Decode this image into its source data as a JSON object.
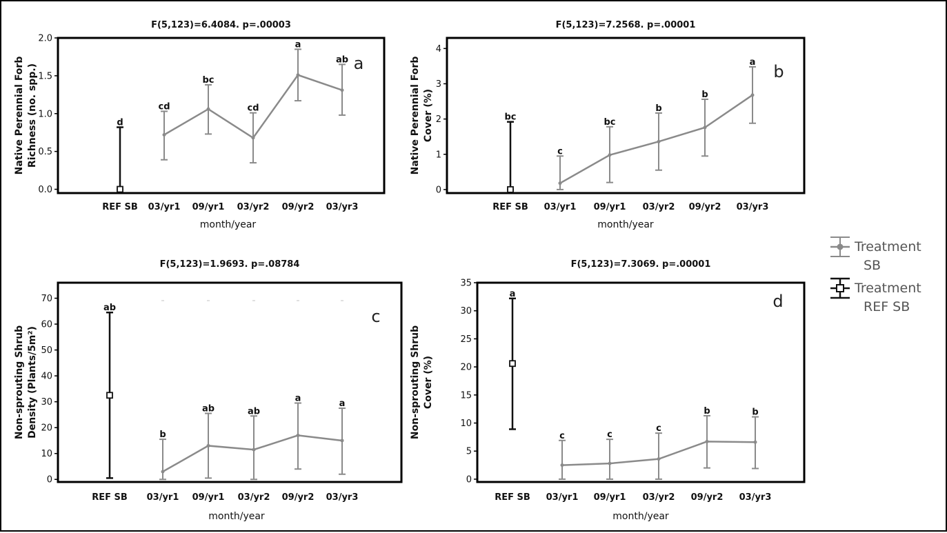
{
  "legend": {
    "items": [
      {
        "line1": "Treatment",
        "line2": "SB",
        "color": "#8a8a8a",
        "marker": "circle"
      },
      {
        "line1": "Treatment",
        "line2": "REF SB",
        "color": "#111111",
        "marker": "square"
      }
    ]
  },
  "chart_data": [
    {
      "type": "line",
      "title": "F(5,123)=6.4084. p=.00003",
      "panel_label": "a",
      "ylabel_lines": [
        "Native Perennial Forb",
        "Richness (no. spp.)"
      ],
      "xlabel": "month/year",
      "categories": [
        "REF SB",
        "03/yr1",
        "09/yr1",
        "03/yr2",
        "09/yr2",
        "03/yr3"
      ],
      "ylim": [
        -0.05,
        2.0
      ],
      "yticks": [
        0.0,
        0.5,
        1.0,
        1.5,
        2.0
      ],
      "ytick_labels": [
        "0.0",
        "0.5",
        "1.0",
        "1.5",
        "2.0"
      ],
      "series": [
        {
          "name": "Treatment SB",
          "color": "#8a8a8a",
          "marker": "circle",
          "x": [
            "03/yr1",
            "09/yr1",
            "03/yr2",
            "09/yr2",
            "03/yr3"
          ],
          "values": [
            0.72,
            1.06,
            0.68,
            1.51,
            1.31
          ],
          "lower": [
            0.39,
            0.73,
            0.35,
            1.17,
            0.98
          ],
          "upper": [
            1.03,
            1.38,
            1.01,
            1.85,
            1.65
          ]
        },
        {
          "name": "Treatment REF SB",
          "color": "#111111",
          "marker": "square",
          "x": [
            "REF SB"
          ],
          "values": [
            0.0
          ],
          "lower": [
            0.0
          ],
          "upper": [
            0.82
          ]
        }
      ],
      "letters": [
        {
          "x": "REF SB",
          "text": "d",
          "y": 0.82
        },
        {
          "x": "03/yr1",
          "text": "cd",
          "y": 1.03
        },
        {
          "x": "09/yr1",
          "text": "bc",
          "y": 1.38
        },
        {
          "x": "03/yr2",
          "text": "cd",
          "y": 1.01
        },
        {
          "x": "09/yr2",
          "text": "a",
          "y": 1.85
        },
        {
          "x": "03/yr3",
          "text": "ab",
          "y": 1.65
        }
      ]
    },
    {
      "type": "line",
      "title": "F(5,123)=7.2568. p=.00001",
      "panel_label": "b",
      "ylabel_lines": [
        "Native Perennial Forb",
        "Cover (%)"
      ],
      "xlabel": "month/year",
      "categories": [
        "REF SB",
        "03/yr1",
        "09/yr1",
        "03/yr2",
        "09/yr2",
        "03/yr3"
      ],
      "ylim": [
        -0.1,
        4.3
      ],
      "yticks": [
        0,
        1,
        2,
        3,
        4
      ],
      "ytick_labels": [
        "0",
        "1",
        "2",
        "3",
        "4"
      ],
      "series": [
        {
          "name": "Treatment SB",
          "color": "#8a8a8a",
          "marker": "circle",
          "x": [
            "03/yr1",
            "09/yr1",
            "03/yr2",
            "09/yr2",
            "03/yr3"
          ],
          "values": [
            0.18,
            0.98,
            1.36,
            1.76,
            2.68
          ],
          "lower": [
            0.0,
            0.2,
            0.55,
            0.95,
            1.88
          ],
          "upper": [
            0.95,
            1.78,
            2.17,
            2.56,
            3.48
          ]
        },
        {
          "name": "Treatment REF SB",
          "color": "#111111",
          "marker": "square",
          "x": [
            "REF SB"
          ],
          "values": [
            0.0
          ],
          "lower": [
            0.0
          ],
          "upper": [
            1.92
          ]
        }
      ],
      "letters": [
        {
          "x": "REF SB",
          "text": "bc",
          "y": 1.92
        },
        {
          "x": "03/yr1",
          "text": "c",
          "y": 0.95
        },
        {
          "x": "09/yr1",
          "text": "bc",
          "y": 1.78
        },
        {
          "x": "03/yr2",
          "text": "b",
          "y": 2.17
        },
        {
          "x": "09/yr2",
          "text": "b",
          "y": 2.56
        },
        {
          "x": "03/yr3",
          "text": "a",
          "y": 3.48
        }
      ]
    },
    {
      "type": "line",
      "title": "F(5,123)=1.9693. p=.08784",
      "panel_label": "c",
      "ylabel_lines": [
        "Non-sprouting Shrub",
        "Density (Plants/5m²)"
      ],
      "xlabel": "month/year",
      "categories": [
        "REF SB",
        "03/yr1",
        "09/yr1",
        "03/yr2",
        "09/yr2",
        "03/yr3"
      ],
      "ylim": [
        -1,
        76
      ],
      "yticks": [
        0,
        10,
        20,
        30,
        40,
        50,
        60,
        70
      ],
      "ytick_labels": [
        "0",
        "10",
        "20",
        "30",
        "40",
        "50",
        "60",
        "70"
      ],
      "series": [
        {
          "name": "Treatment SB",
          "color": "#8a8a8a",
          "marker": "circle",
          "x": [
            "03/yr1",
            "09/yr1",
            "03/yr2",
            "09/yr2",
            "03/yr3"
          ],
          "values": [
            3,
            13,
            11.5,
            17,
            15
          ],
          "lower": [
            0,
            0.5,
            0,
            4,
            2
          ],
          "upper": [
            15.5,
            25.5,
            24.5,
            29.5,
            27.5
          ]
        },
        {
          "name": "Treatment REF SB",
          "color": "#111111",
          "marker": "square",
          "x": [
            "REF SB"
          ],
          "values": [
            32.5
          ],
          "lower": [
            0.5
          ],
          "upper": [
            64.5
          ]
        }
      ],
      "letters": [
        {
          "x": "REF SB",
          "text": "ab",
          "y": 64.5
        },
        {
          "x": "03/yr1",
          "text": "b",
          "y": 15.5
        },
        {
          "x": "09/yr1",
          "text": "ab",
          "y": 25.5
        },
        {
          "x": "03/yr2",
          "text": "ab",
          "y": 24.5
        },
        {
          "x": "09/yr2",
          "text": "a",
          "y": 29.5
        },
        {
          "x": "03/yr3",
          "text": "a",
          "y": 27.5
        }
      ]
    },
    {
      "type": "line",
      "title": "F(5,123)=7.3069. p=.00001",
      "panel_label": "d",
      "ylabel_lines": [
        "Non-sprouting Shrub",
        "Cover (%)"
      ],
      "xlabel": "month/year",
      "categories": [
        "REF SB",
        "03/yr1",
        "09/yr1",
        "03/yr2",
        "09/yr2",
        "03/yr3"
      ],
      "ylim": [
        -0.5,
        35
      ],
      "yticks": [
        0,
        5,
        10,
        15,
        20,
        25,
        30,
        35
      ],
      "ytick_labels": [
        "0",
        "5",
        "10",
        "15",
        "20",
        "25",
        "30",
        "35"
      ],
      "series": [
        {
          "name": "Treatment SB",
          "color": "#8a8a8a",
          "marker": "circle",
          "x": [
            "03/yr1",
            "09/yr1",
            "03/yr2",
            "09/yr2",
            "03/yr3"
          ],
          "values": [
            2.5,
            2.8,
            3.6,
            6.7,
            6.6
          ],
          "lower": [
            0,
            0,
            0,
            2,
            1.9
          ],
          "upper": [
            6.9,
            7.1,
            8.2,
            11.3,
            11.1
          ]
        },
        {
          "name": "Treatment REF SB",
          "color": "#111111",
          "marker": "square",
          "x": [
            "REF SB"
          ],
          "values": [
            20.6
          ],
          "lower": [
            8.9
          ],
          "upper": [
            32.2
          ]
        }
      ],
      "letters": [
        {
          "x": "REF SB",
          "text": "a",
          "y": 32.2
        },
        {
          "x": "03/yr1",
          "text": "c",
          "y": 6.9
        },
        {
          "x": "09/yr1",
          "text": "c",
          "y": 7.1
        },
        {
          "x": "03/yr2",
          "text": "c",
          "y": 8.2
        },
        {
          "x": "09/yr2",
          "text": "b",
          "y": 11.3
        },
        {
          "x": "03/yr3",
          "text": "b",
          "y": 11.1
        }
      ]
    }
  ]
}
